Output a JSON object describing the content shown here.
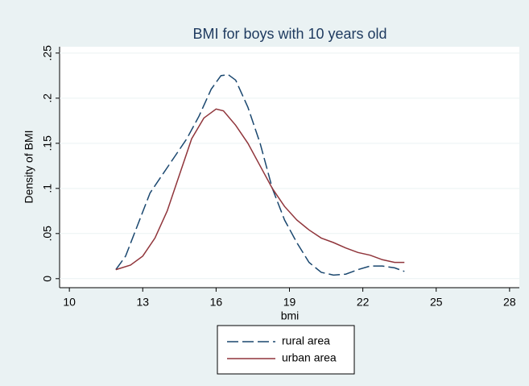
{
  "chart_data": {
    "type": "line",
    "title": "BMI for boys with 10 years old",
    "xlabel": "bmi",
    "ylabel": "Density of BMI",
    "xlim": [
      9.6,
      28.4
    ],
    "xticks": [
      10,
      13,
      16,
      19,
      22,
      25,
      28
    ],
    "ylim": [
      -0.01,
      0.257
    ],
    "yticks": [
      0,
      {
        "value": 0.05,
        "label": ".05"
      },
      {
        "value": 0.1,
        "label": ".1"
      },
      {
        "value": 0.15,
        "label": ".15"
      },
      {
        "value": 0.2,
        "label": ".2"
      },
      {
        "value": 0.25,
        "label": ".25"
      }
    ],
    "grid": true,
    "legend": "bottom",
    "series": [
      {
        "name": "rural area",
        "color": "#1a476f",
        "dash": true,
        "x": [
          11.9,
          12.3,
          12.8,
          13.3,
          13.8,
          14.3,
          14.8,
          15.3,
          15.8,
          16.2,
          16.5,
          16.8,
          17.3,
          17.8,
          18.3,
          18.8,
          19.3,
          19.8,
          20.3,
          20.8,
          21.3,
          21.8,
          22.3,
          22.8,
          23.3,
          23.7
        ],
        "values": [
          0.01,
          0.025,
          0.06,
          0.095,
          0.115,
          0.135,
          0.155,
          0.18,
          0.21,
          0.225,
          0.226,
          0.22,
          0.19,
          0.15,
          0.1,
          0.065,
          0.04,
          0.018,
          0.007,
          0.004,
          0.005,
          0.01,
          0.014,
          0.014,
          0.012,
          0.008
        ]
      },
      {
        "name": "urban area",
        "color": "#90353b",
        "dash": false,
        "x": [
          11.9,
          12.5,
          13.0,
          13.5,
          14.0,
          14.5,
          15.0,
          15.5,
          16.0,
          16.3,
          16.8,
          17.3,
          17.8,
          18.3,
          18.8,
          19.3,
          19.8,
          20.3,
          20.8,
          21.3,
          21.8,
          22.3,
          22.8,
          23.3,
          23.7
        ],
        "values": [
          0.01,
          0.015,
          0.025,
          0.045,
          0.075,
          0.115,
          0.155,
          0.178,
          0.188,
          0.186,
          0.17,
          0.15,
          0.125,
          0.1,
          0.08,
          0.065,
          0.054,
          0.045,
          0.04,
          0.034,
          0.029,
          0.026,
          0.021,
          0.018,
          0.018
        ]
      }
    ]
  }
}
